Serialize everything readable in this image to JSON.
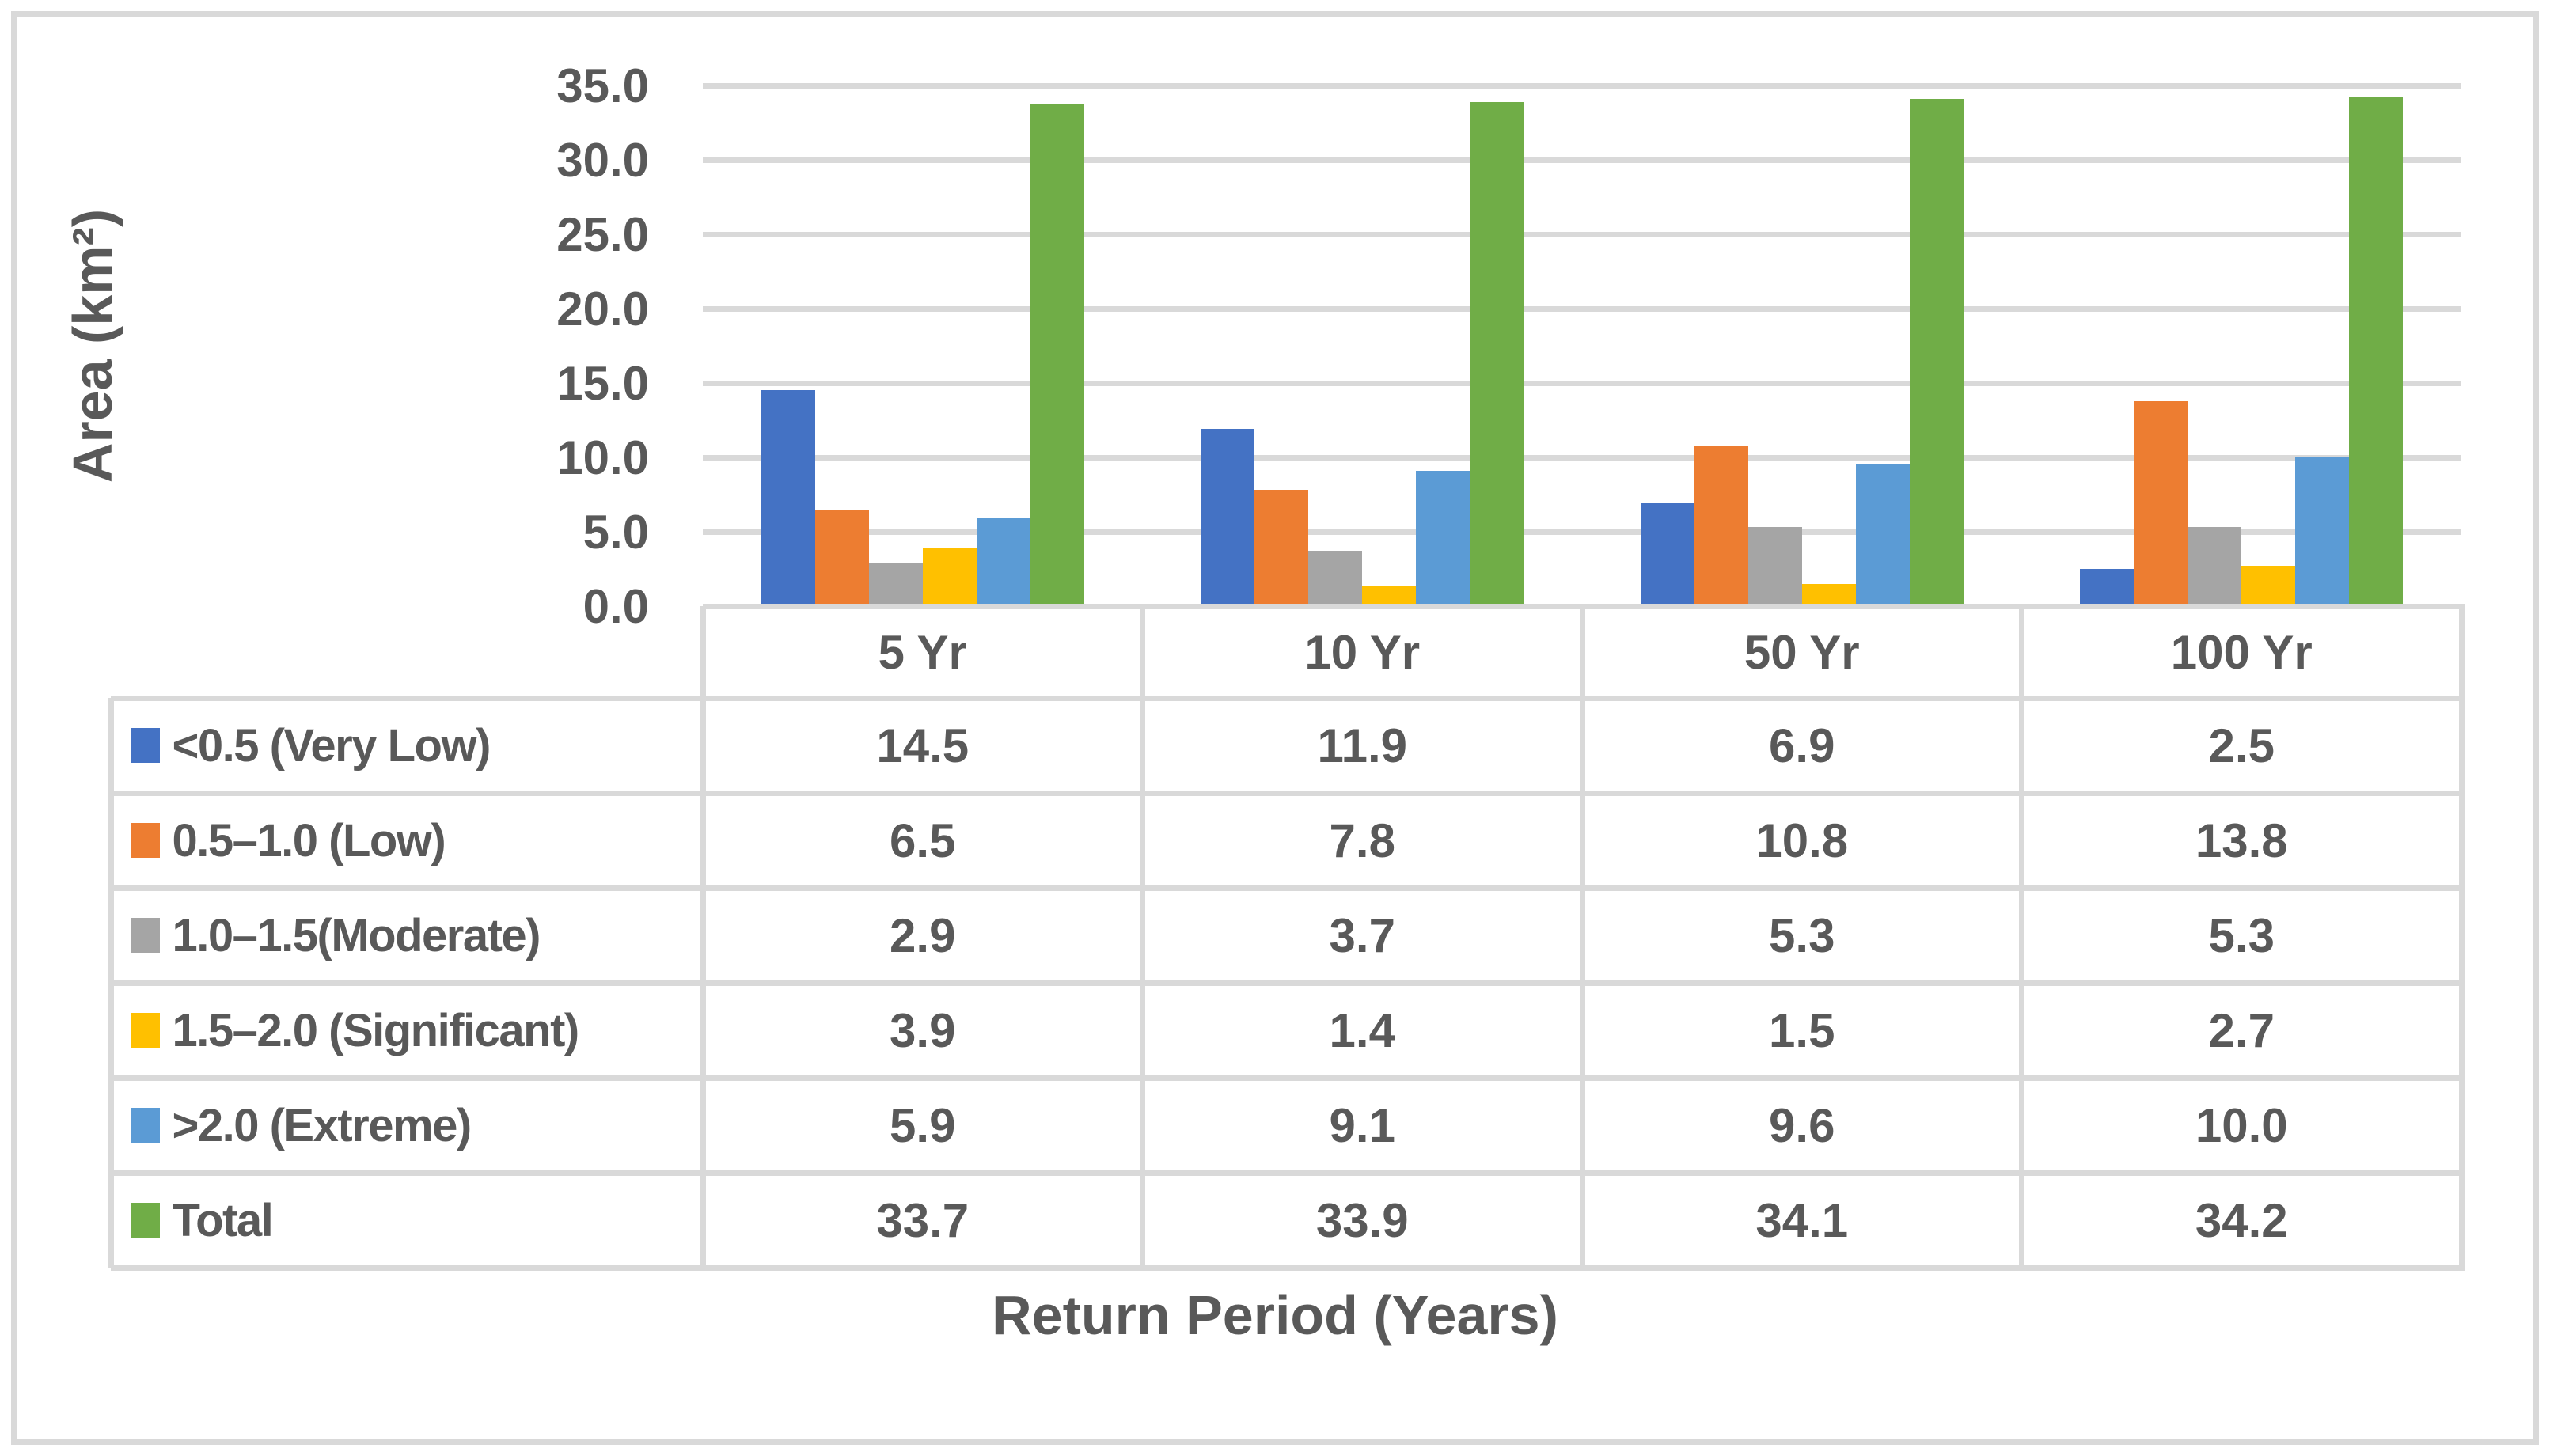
{
  "chart_data": {
    "type": "bar",
    "title": "",
    "xlabel": "Return Period (Years)",
    "ylabel": "Area (km²)",
    "categories": [
      "5 Yr",
      "10 Yr",
      "50 Yr",
      "100 Yr"
    ],
    "series": [
      {
        "name": "<0.5 (Very Low)",
        "color": "#4472C4",
        "values": [
          14.5,
          11.9,
          6.9,
          2.5
        ]
      },
      {
        "name": "0.5–1.0 (Low)",
        "color": "#ED7D31",
        "values": [
          6.5,
          7.8,
          10.8,
          13.8
        ]
      },
      {
        "name": "1.0–1.5(Moderate)",
        "color": "#A5A5A5",
        "values": [
          2.9,
          3.7,
          5.3,
          5.3
        ]
      },
      {
        "name": "1.5–2.0 (Significant)",
        "color": "#FFC000",
        "values": [
          3.9,
          1.4,
          1.5,
          2.7
        ]
      },
      {
        "name": ">2.0 (Extreme)",
        "color": "#5B9BD5",
        "values": [
          5.9,
          9.1,
          9.6,
          10.0
        ]
      },
      {
        "name": "Total",
        "color": "#70AD47",
        "values": [
          33.7,
          33.9,
          34.1,
          34.2
        ]
      }
    ],
    "ylim": [
      0,
      35
    ],
    "ytick_step": 5,
    "ytick_format": "one_decimal",
    "grid": true,
    "legend_position": "data-table-left-column"
  },
  "styles": {
    "text_color": "#595959",
    "grid_color": "#D9D9D9",
    "background": "#ffffff"
  }
}
